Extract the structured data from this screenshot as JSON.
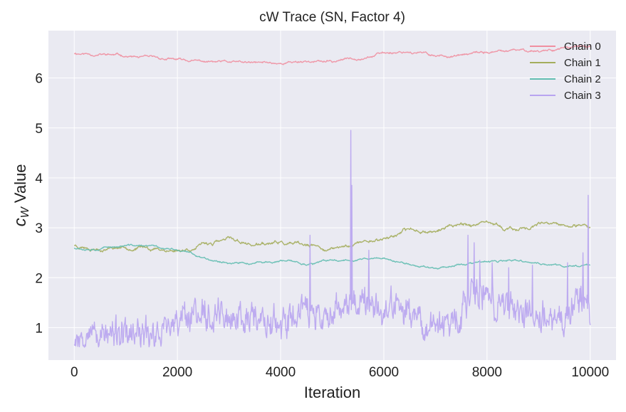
{
  "chart_data": {
    "type": "line",
    "title": "cW Trace (SN, Factor 4)",
    "xlabel": "Iteration",
    "ylabel_main": "c",
    "ylabel_sub": "W",
    "ylabel_rest": " Value",
    "xlim": [
      -500,
      10500
    ],
    "ylim": [
      0.35,
      6.95
    ],
    "xticks": [
      0,
      2000,
      4000,
      6000,
      8000,
      10000
    ],
    "yticks": [
      1,
      2,
      3,
      4,
      5,
      6
    ],
    "grid": true,
    "legend_position": "top-right",
    "series": [
      {
        "name": "Chain 0",
        "color": "#f08fa0",
        "style": "random-walk",
        "anchors": [
          [
            0,
            6.5
          ],
          [
            500,
            6.48
          ],
          [
            1000,
            6.44
          ],
          [
            1500,
            6.38
          ],
          [
            2000,
            6.35
          ],
          [
            2500,
            6.32
          ],
          [
            3000,
            6.3
          ],
          [
            3500,
            6.28
          ],
          [
            4000,
            6.3
          ],
          [
            4500,
            6.35
          ],
          [
            5000,
            6.32
          ],
          [
            5500,
            6.42
          ],
          [
            6000,
            6.5
          ],
          [
            6500,
            6.55
          ],
          [
            7000,
            6.45
          ],
          [
            7500,
            6.45
          ],
          [
            8000,
            6.5
          ],
          [
            8500,
            6.53
          ],
          [
            9000,
            6.55
          ],
          [
            9500,
            6.62
          ],
          [
            10000,
            6.6
          ]
        ],
        "noise": 0.012,
        "seed": 11
      },
      {
        "name": "Chain 1",
        "color": "#a4ad5c",
        "style": "random-walk",
        "anchors": [
          [
            0,
            2.65
          ],
          [
            500,
            2.62
          ],
          [
            1000,
            2.65
          ],
          [
            1500,
            2.6
          ],
          [
            2000,
            2.55
          ],
          [
            2500,
            2.65
          ],
          [
            3000,
            2.75
          ],
          [
            3500,
            2.65
          ],
          [
            4000,
            2.68
          ],
          [
            4500,
            2.6
          ],
          [
            5000,
            2.55
          ],
          [
            5500,
            2.7
          ],
          [
            6000,
            2.8
          ],
          [
            6500,
            2.95
          ],
          [
            7000,
            2.95
          ],
          [
            7500,
            3.1
          ],
          [
            8000,
            3.05
          ],
          [
            8500,
            2.95
          ],
          [
            9000,
            3.05
          ],
          [
            9500,
            3.0
          ],
          [
            10000,
            2.95
          ]
        ],
        "noise": 0.018,
        "seed": 23
      },
      {
        "name": "Chain 2",
        "color": "#60bcb0",
        "style": "random-walk",
        "anchors": [
          [
            0,
            2.6
          ],
          [
            500,
            2.62
          ],
          [
            1000,
            2.65
          ],
          [
            1500,
            2.62
          ],
          [
            2000,
            2.55
          ],
          [
            2500,
            2.4
          ],
          [
            3000,
            2.32
          ],
          [
            3500,
            2.28
          ],
          [
            4000,
            2.32
          ],
          [
            4500,
            2.28
          ],
          [
            5000,
            2.33
          ],
          [
            5500,
            2.38
          ],
          [
            6000,
            2.38
          ],
          [
            6500,
            2.25
          ],
          [
            7000,
            2.2
          ],
          [
            7500,
            2.28
          ],
          [
            8000,
            2.3
          ],
          [
            8500,
            2.32
          ],
          [
            9000,
            2.28
          ],
          [
            9500,
            2.22
          ],
          [
            10000,
            2.28
          ]
        ],
        "noise": 0.01,
        "seed": 37
      },
      {
        "name": "Chain 3",
        "color": "#b8a4f0",
        "style": "noisy",
        "anchors": [
          [
            0,
            0.85
          ],
          [
            500,
            0.85
          ],
          [
            1000,
            0.82
          ],
          [
            1500,
            0.85
          ],
          [
            1800,
            0.95
          ],
          [
            2000,
            1.05
          ],
          [
            2300,
            1.3
          ],
          [
            2500,
            1.35
          ],
          [
            3000,
            1.2
          ],
          [
            3500,
            1.25
          ],
          [
            3800,
            1.05
          ],
          [
            4000,
            1.05
          ],
          [
            4300,
            1.2
          ],
          [
            4600,
            1.35
          ],
          [
            4800,
            1.15
          ],
          [
            5000,
            1.4
          ],
          [
            5300,
            1.45
          ],
          [
            5600,
            1.5
          ],
          [
            5800,
            1.35
          ],
          [
            6000,
            1.35
          ],
          [
            6300,
            1.45
          ],
          [
            6500,
            1.25
          ],
          [
            6800,
            1.05
          ],
          [
            7000,
            1.0
          ],
          [
            7300,
            1.1
          ],
          [
            7500,
            1.25
          ],
          [
            7700,
            1.75
          ],
          [
            7900,
            1.7
          ],
          [
            8200,
            1.45
          ],
          [
            8500,
            1.35
          ],
          [
            8800,
            1.2
          ],
          [
            9000,
            1.3
          ],
          [
            9300,
            1.25
          ],
          [
            9500,
            1.1
          ],
          [
            9700,
            1.45
          ],
          [
            9900,
            1.7
          ],
          [
            10000,
            1.2
          ]
        ],
        "noise": 0.22,
        "spikes": [
          [
            4570,
            2.85
          ],
          [
            5360,
            4.95
          ],
          [
            5380,
            3.85
          ],
          [
            5710,
            2.55
          ],
          [
            7630,
            2.85
          ],
          [
            7750,
            2.7
          ],
          [
            7860,
            2.35
          ],
          [
            8100,
            2.3
          ],
          [
            8420,
            2.2
          ],
          [
            8880,
            2.25
          ],
          [
            9560,
            2.3
          ],
          [
            9860,
            2.5
          ],
          [
            9960,
            3.65
          ],
          [
            10000,
            1.05
          ]
        ],
        "seed": 53
      }
    ]
  }
}
